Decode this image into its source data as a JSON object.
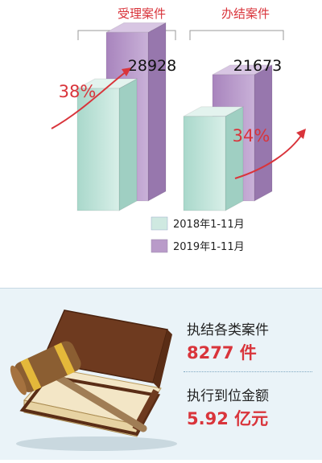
{
  "chart_data": {
    "type": "bar",
    "categories": [
      "受理案件",
      "办结案件"
    ],
    "series": [
      {
        "name": "2018年1-11月",
        "values": [
          20963,
          16174
        ]
      },
      {
        "name": "2019年1-11月",
        "values": [
          28928,
          21673
        ]
      }
    ],
    "data_labels": [
      "28928",
      "21673"
    ],
    "growth_labels": [
      "38%",
      "34%"
    ],
    "colors": {
      "2018": "#bfe2d8",
      "2019": "#b99bc9",
      "accent": "#d9343b"
    },
    "ylim": [
      0,
      32000
    ]
  },
  "stats": [
    {
      "label": "执结各类案件",
      "value": "8277 件"
    },
    {
      "label": "执行到位金额",
      "value": "5.92 亿元"
    }
  ],
  "illustration": "gavel-on-book-icon"
}
